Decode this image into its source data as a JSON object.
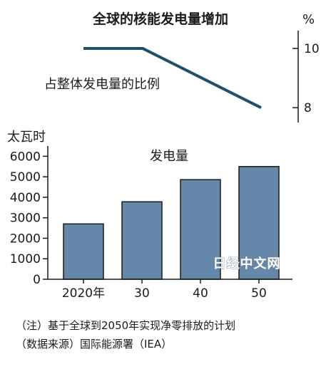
{
  "title": "全球的核能发电量增加",
  "chart_data": [
    {
      "type": "line",
      "title": "",
      "series_label": "占整体发电量的比例",
      "unit": "%",
      "x": [
        "2020",
        "2030",
        "2040",
        "2050"
      ],
      "values": [
        10,
        10,
        9,
        8
      ],
      "y_ticks": [
        "10",
        "8"
      ],
      "ylim": [
        7.5,
        10.6
      ],
      "grid": false,
      "line_color": "#1f4f6b"
    },
    {
      "type": "bar",
      "title": "",
      "series_label": "发电量",
      "unit": "太瓦时",
      "categories": [
        "2020年",
        "30",
        "40",
        "50"
      ],
      "values": [
        2700,
        3780,
        4860,
        5500
      ],
      "y_ticks": [
        "0",
        "1000",
        "2000",
        "3000",
        "4000",
        "5000",
        "6000"
      ],
      "ylim": [
        0,
        6500
      ],
      "grid": false,
      "bar_color": "#6688a8",
      "bar_edge": "#1a1a1a"
    }
  ],
  "notes": [
    "（注）基于全球到2050年实现净零排放的计划",
    "（数据来源）国际能源署（IEA）"
  ],
  "watermark": "日经中文网"
}
